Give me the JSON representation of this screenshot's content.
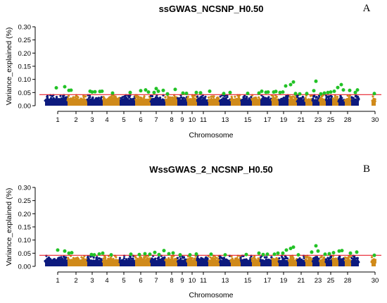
{
  "chart_data": [
    {
      "type": "scatter",
      "title": "ssGWAS_NCSNP_H0.50",
      "panel_label": "A",
      "xlabel": "Chromosome",
      "ylabel": "Variance_explained (%)",
      "ylim": [
        0,
        0.3
      ],
      "yticks": [
        "0.00",
        "0.05",
        "0.10",
        "0.15",
        "0.20",
        "0.25",
        "0.30"
      ],
      "xtick_labels": [
        "1",
        "2",
        "3",
        "4",
        "5",
        "6",
        "7",
        "8",
        "9",
        "10",
        "11",
        "13",
        "15",
        "17",
        "19",
        "21",
        "23",
        "25",
        "28",
        "30"
      ],
      "threshold": 0.042,
      "threshold_color": "#e8212b",
      "colors": {
        "odd_chromosome": "#0d1a7e",
        "even_chromosome": "#d08a1a",
        "significant": "#22c226"
      },
      "chromosomes": [
        {
          "chr": 1,
          "x_start": 64,
          "x_end": 96,
          "mean": 0.018,
          "max": 0.04
        },
        {
          "chr": 2,
          "x_start": 96,
          "x_end": 124,
          "mean": 0.018,
          "max": 0.04
        },
        {
          "chr": 3,
          "x_start": 124,
          "x_end": 146,
          "mean": 0.016,
          "max": 0.04
        },
        {
          "chr": 4,
          "x_start": 146,
          "x_end": 170,
          "mean": 0.018,
          "max": 0.04
        },
        {
          "chr": 5,
          "x_start": 170,
          "x_end": 192,
          "mean": 0.016,
          "max": 0.04
        },
        {
          "chr": 6,
          "x_start": 192,
          "x_end": 214,
          "mean": 0.018,
          "max": 0.04
        },
        {
          "chr": 7,
          "x_start": 214,
          "x_end": 235,
          "mean": 0.016,
          "max": 0.04
        },
        {
          "chr": 8,
          "x_start": 235,
          "x_end": 252,
          "mean": 0.018,
          "max": 0.04
        },
        {
          "chr": 9,
          "x_start": 252,
          "x_end": 266,
          "mean": 0.016,
          "max": 0.04
        },
        {
          "chr": 10,
          "x_start": 266,
          "x_end": 280,
          "mean": 0.018,
          "max": 0.04
        },
        {
          "chr": 11,
          "x_start": 280,
          "x_end": 296,
          "mean": 0.016,
          "max": 0.04
        },
        {
          "chr": 12,
          "x_start": 296,
          "x_end": 312,
          "mean": 0.018,
          "max": 0.04
        },
        {
          "chr": 13,
          "x_start": 312,
          "x_end": 328,
          "mean": 0.016,
          "max": 0.04
        },
        {
          "chr": 14,
          "x_start": 328,
          "x_end": 342,
          "mean": 0.018,
          "max": 0.04
        },
        {
          "chr": 15,
          "x_start": 342,
          "x_end": 358,
          "mean": 0.016,
          "max": 0.04
        },
        {
          "chr": 16,
          "x_start": 358,
          "x_end": 370,
          "mean": 0.018,
          "max": 0.04
        },
        {
          "chr": 17,
          "x_start": 370,
          "x_end": 386,
          "mean": 0.016,
          "max": 0.04
        },
        {
          "chr": 18,
          "x_start": 386,
          "x_end": 396,
          "mean": 0.018,
          "max": 0.04
        },
        {
          "chr": 19,
          "x_start": 396,
          "x_end": 410,
          "mean": 0.016,
          "max": 0.04
        },
        {
          "chr": 20,
          "x_start": 410,
          "x_end": 422,
          "mean": 0.018,
          "max": 0.04
        },
        {
          "chr": 21,
          "x_start": 422,
          "x_end": 434,
          "mean": 0.016,
          "max": 0.04
        },
        {
          "chr": 22,
          "x_start": 434,
          "x_end": 444,
          "mean": 0.018,
          "max": 0.04
        },
        {
          "chr": 23,
          "x_start": 444,
          "x_end": 454,
          "mean": 0.016,
          "max": 0.04
        },
        {
          "chr": 24,
          "x_start": 454,
          "x_end": 463,
          "mean": 0.018,
          "max": 0.04
        },
        {
          "chr": 25,
          "x_start": 463,
          "x_end": 472,
          "mean": 0.016,
          "max": 0.04
        },
        {
          "chr": 26,
          "x_start": 472,
          "x_end": 481,
          "mean": 0.018,
          "max": 0.04
        },
        {
          "chr": 27,
          "x_start": 481,
          "x_end": 490,
          "mean": 0.016,
          "max": 0.04
        },
        {
          "chr": 28,
          "x_start": 490,
          "x_end": 499,
          "mean": 0.018,
          "max": 0.04
        },
        {
          "chr": 29,
          "x_start": 499,
          "x_end": 510,
          "mean": 0.016,
          "max": 0.04
        },
        {
          "chr": 30,
          "x_start": 528,
          "x_end": 534,
          "mean": 0.014,
          "max": 0.035
        }
      ],
      "significant_points": [
        {
          "x": 80,
          "y": 0.068
        },
        {
          "x": 92,
          "y": 0.072
        },
        {
          "x": 98,
          "y": 0.058
        },
        {
          "x": 101,
          "y": 0.059
        },
        {
          "x": 128,
          "y": 0.055
        },
        {
          "x": 131,
          "y": 0.052
        },
        {
          "x": 135,
          "y": 0.053
        },
        {
          "x": 142,
          "y": 0.054
        },
        {
          "x": 145,
          "y": 0.055
        },
        {
          "x": 160,
          "y": 0.048
        },
        {
          "x": 185,
          "y": 0.05
        },
        {
          "x": 200,
          "y": 0.057
        },
        {
          "x": 207,
          "y": 0.06
        },
        {
          "x": 211,
          "y": 0.052
        },
        {
          "x": 219,
          "y": 0.05
        },
        {
          "x": 222,
          "y": 0.065
        },
        {
          "x": 225,
          "y": 0.055
        },
        {
          "x": 232,
          "y": 0.058
        },
        {
          "x": 238,
          "y": 0.045
        },
        {
          "x": 249,
          "y": 0.062
        },
        {
          "x": 260,
          "y": 0.048
        },
        {
          "x": 265,
          "y": 0.047
        },
        {
          "x": 279,
          "y": 0.05
        },
        {
          "x": 285,
          "y": 0.049
        },
        {
          "x": 298,
          "y": 0.055
        },
        {
          "x": 318,
          "y": 0.046
        },
        {
          "x": 327,
          "y": 0.05
        },
        {
          "x": 352,
          "y": 0.047
        },
        {
          "x": 368,
          "y": 0.048
        },
        {
          "x": 372,
          "y": 0.055
        },
        {
          "x": 378,
          "y": 0.051
        },
        {
          "x": 381,
          "y": 0.052
        },
        {
          "x": 389,
          "y": 0.052
        },
        {
          "x": 392,
          "y": 0.054
        },
        {
          "x": 398,
          "y": 0.05
        },
        {
          "x": 402,
          "y": 0.052
        },
        {
          "x": 406,
          "y": 0.075
        },
        {
          "x": 413,
          "y": 0.08
        },
        {
          "x": 417,
          "y": 0.09
        },
        {
          "x": 420,
          "y": 0.046
        },
        {
          "x": 426,
          "y": 0.045
        },
        {
          "x": 436,
          "y": 0.046
        },
        {
          "x": 446,
          "y": 0.057
        },
        {
          "x": 449,
          "y": 0.093
        },
        {
          "x": 456,
          "y": 0.045
        },
        {
          "x": 461,
          "y": 0.048
        },
        {
          "x": 466,
          "y": 0.05
        },
        {
          "x": 470,
          "y": 0.052
        },
        {
          "x": 475,
          "y": 0.055
        },
        {
          "x": 480,
          "y": 0.069
        },
        {
          "x": 485,
          "y": 0.08
        },
        {
          "x": 488,
          "y": 0.06
        },
        {
          "x": 497,
          "y": 0.058
        },
        {
          "x": 505,
          "y": 0.05
        },
        {
          "x": 508,
          "y": 0.06
        },
        {
          "x": 532,
          "y": 0.046
        }
      ]
    },
    {
      "type": "scatter",
      "title": "WssGWAS_2_NCSNP_H0.50",
      "panel_label": "B",
      "xlabel": "Chromosome",
      "ylabel": "Variance_explained (%)",
      "ylim": [
        0,
        0.3
      ],
      "yticks": [
        "0.00",
        "0.05",
        "0.10",
        "0.15",
        "0.20",
        "0.25",
        "0.30"
      ],
      "xtick_labels": [
        "1",
        "2",
        "3",
        "4",
        "5",
        "6",
        "7",
        "8",
        "9",
        "10",
        "11",
        "13",
        "15",
        "17",
        "19",
        "21",
        "23",
        "25",
        "28",
        "30"
      ],
      "threshold": 0.042,
      "threshold_color": "#e8212b",
      "colors": {
        "odd_chromosome": "#0d1a7e",
        "even_chromosome": "#d08a1a",
        "significant": "#22c226"
      },
      "chromosomes": [
        {
          "chr": 1,
          "x_start": 64,
          "x_end": 96,
          "mean": 0.018,
          "max": 0.04
        },
        {
          "chr": 2,
          "x_start": 96,
          "x_end": 124,
          "mean": 0.018,
          "max": 0.04
        },
        {
          "chr": 3,
          "x_start": 124,
          "x_end": 146,
          "mean": 0.016,
          "max": 0.04
        },
        {
          "chr": 4,
          "x_start": 146,
          "x_end": 170,
          "mean": 0.018,
          "max": 0.04
        },
        {
          "chr": 5,
          "x_start": 170,
          "x_end": 192,
          "mean": 0.016,
          "max": 0.04
        },
        {
          "chr": 6,
          "x_start": 192,
          "x_end": 214,
          "mean": 0.018,
          "max": 0.04
        },
        {
          "chr": 7,
          "x_start": 214,
          "x_end": 235,
          "mean": 0.016,
          "max": 0.04
        },
        {
          "chr": 8,
          "x_start": 235,
          "x_end": 252,
          "mean": 0.018,
          "max": 0.04
        },
        {
          "chr": 9,
          "x_start": 252,
          "x_end": 266,
          "mean": 0.016,
          "max": 0.04
        },
        {
          "chr": 10,
          "x_start": 266,
          "x_end": 280,
          "mean": 0.018,
          "max": 0.04
        },
        {
          "chr": 11,
          "x_start": 280,
          "x_end": 296,
          "mean": 0.016,
          "max": 0.04
        },
        {
          "chr": 12,
          "x_start": 296,
          "x_end": 312,
          "mean": 0.018,
          "max": 0.04
        },
        {
          "chr": 13,
          "x_start": 312,
          "x_end": 328,
          "mean": 0.016,
          "max": 0.04
        },
        {
          "chr": 14,
          "x_start": 328,
          "x_end": 342,
          "mean": 0.018,
          "max": 0.04
        },
        {
          "chr": 15,
          "x_start": 342,
          "x_end": 358,
          "mean": 0.016,
          "max": 0.04
        },
        {
          "chr": 16,
          "x_start": 358,
          "x_end": 370,
          "mean": 0.018,
          "max": 0.04
        },
        {
          "chr": 17,
          "x_start": 370,
          "x_end": 386,
          "mean": 0.016,
          "max": 0.04
        },
        {
          "chr": 18,
          "x_start": 386,
          "x_end": 396,
          "mean": 0.018,
          "max": 0.04
        },
        {
          "chr": 19,
          "x_start": 396,
          "x_end": 410,
          "mean": 0.016,
          "max": 0.04
        },
        {
          "chr": 20,
          "x_start": 410,
          "x_end": 422,
          "mean": 0.018,
          "max": 0.04
        },
        {
          "chr": 21,
          "x_start": 422,
          "x_end": 434,
          "mean": 0.016,
          "max": 0.04
        },
        {
          "chr": 22,
          "x_start": 434,
          "x_end": 444,
          "mean": 0.018,
          "max": 0.04
        },
        {
          "chr": 23,
          "x_start": 444,
          "x_end": 454,
          "mean": 0.016,
          "max": 0.04
        },
        {
          "chr": 24,
          "x_start": 454,
          "x_end": 463,
          "mean": 0.018,
          "max": 0.04
        },
        {
          "chr": 25,
          "x_start": 463,
          "x_end": 472,
          "mean": 0.016,
          "max": 0.04
        },
        {
          "chr": 26,
          "x_start": 472,
          "x_end": 481,
          "mean": 0.018,
          "max": 0.04
        },
        {
          "chr": 27,
          "x_start": 481,
          "x_end": 490,
          "mean": 0.016,
          "max": 0.04
        },
        {
          "chr": 28,
          "x_start": 490,
          "x_end": 499,
          "mean": 0.018,
          "max": 0.04
        },
        {
          "chr": 29,
          "x_start": 499,
          "x_end": 510,
          "mean": 0.016,
          "max": 0.04
        },
        {
          "chr": 30,
          "x_start": 528,
          "x_end": 534,
          "mean": 0.014,
          "max": 0.035
        }
      ],
      "significant_points": [
        {
          "x": 82,
          "y": 0.062
        },
        {
          "x": 92,
          "y": 0.058
        },
        {
          "x": 98,
          "y": 0.05
        },
        {
          "x": 102,
          "y": 0.052
        },
        {
          "x": 130,
          "y": 0.045
        },
        {
          "x": 134,
          "y": 0.044
        },
        {
          "x": 141,
          "y": 0.047
        },
        {
          "x": 146,
          "y": 0.05
        },
        {
          "x": 158,
          "y": 0.044
        },
        {
          "x": 186,
          "y": 0.046
        },
        {
          "x": 198,
          "y": 0.045
        },
        {
          "x": 206,
          "y": 0.048
        },
        {
          "x": 213,
          "y": 0.046
        },
        {
          "x": 220,
          "y": 0.053
        },
        {
          "x": 226,
          "y": 0.045
        },
        {
          "x": 233,
          "y": 0.06
        },
        {
          "x": 240,
          "y": 0.048
        },
        {
          "x": 246,
          "y": 0.051
        },
        {
          "x": 256,
          "y": 0.044
        },
        {
          "x": 270,
          "y": 0.044
        },
        {
          "x": 279,
          "y": 0.047
        },
        {
          "x": 300,
          "y": 0.046
        },
        {
          "x": 320,
          "y": 0.044
        },
        {
          "x": 350,
          "y": 0.045
        },
        {
          "x": 368,
          "y": 0.05
        },
        {
          "x": 374,
          "y": 0.045
        },
        {
          "x": 380,
          "y": 0.046
        },
        {
          "x": 390,
          "y": 0.046
        },
        {
          "x": 395,
          "y": 0.05
        },
        {
          "x": 402,
          "y": 0.05
        },
        {
          "x": 407,
          "y": 0.062
        },
        {
          "x": 413,
          "y": 0.068
        },
        {
          "x": 417,
          "y": 0.073
        },
        {
          "x": 424,
          "y": 0.044
        },
        {
          "x": 443,
          "y": 0.054
        },
        {
          "x": 449,
          "y": 0.078
        },
        {
          "x": 452,
          "y": 0.058
        },
        {
          "x": 462,
          "y": 0.046
        },
        {
          "x": 468,
          "y": 0.048
        },
        {
          "x": 474,
          "y": 0.052
        },
        {
          "x": 482,
          "y": 0.058
        },
        {
          "x": 486,
          "y": 0.06
        },
        {
          "x": 498,
          "y": 0.05
        },
        {
          "x": 507,
          "y": 0.054
        },
        {
          "x": 532,
          "y": 0.042
        }
      ]
    }
  ]
}
